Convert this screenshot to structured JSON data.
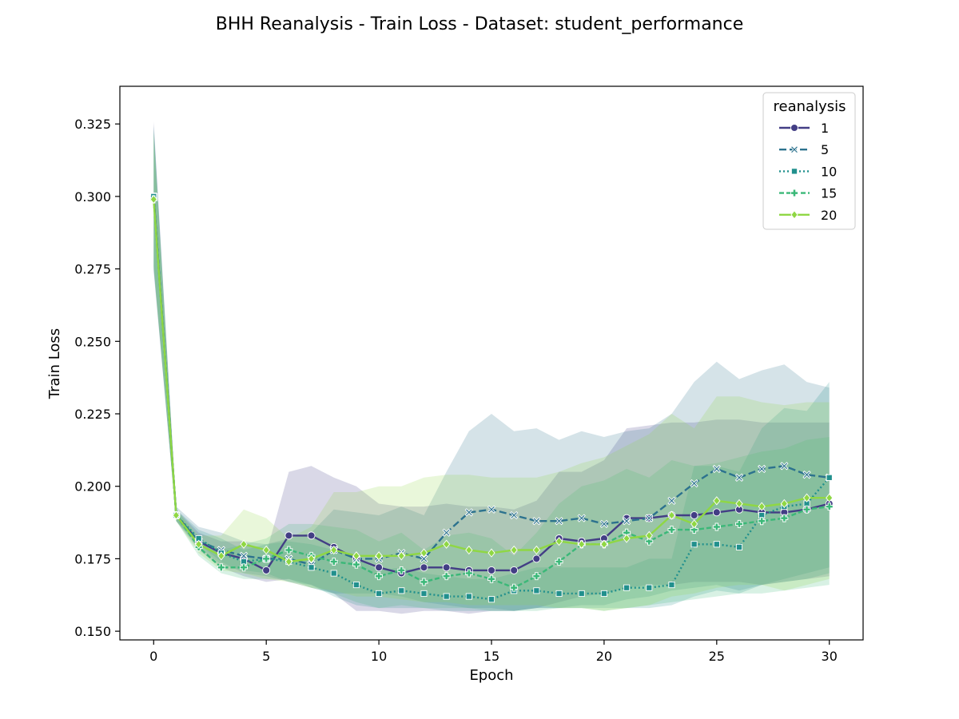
{
  "chart_data": {
    "type": "line",
    "title": "BHH Reanalysis - Train Loss - Dataset: student_performance",
    "xlabel": "Epoch",
    "ylabel": "Train Loss",
    "xlim": [
      -1.5,
      31.5
    ],
    "ylim": [
      0.147,
      0.338
    ],
    "xticks": [
      0,
      5,
      10,
      15,
      20,
      25,
      30
    ],
    "yticks": [
      0.15,
      0.175,
      0.2,
      0.225,
      0.25,
      0.275,
      0.3,
      0.325
    ],
    "grid": false,
    "legend": {
      "title": "reanalysis",
      "placement": "top-right"
    },
    "x": [
      0,
      1,
      2,
      3,
      4,
      5,
      6,
      7,
      8,
      9,
      10,
      11,
      12,
      13,
      14,
      15,
      16,
      17,
      18,
      19,
      20,
      21,
      22,
      23,
      24,
      25,
      26,
      27,
      28,
      29,
      30
    ],
    "series": [
      {
        "name": "1",
        "color": "#433e85",
        "dash": "",
        "marker": "circle",
        "values": [
          0.3,
          0.19,
          0.181,
          0.177,
          0.175,
          0.171,
          0.183,
          0.183,
          0.179,
          0.175,
          0.172,
          0.17,
          0.172,
          0.172,
          0.171,
          0.171,
          0.171,
          0.175,
          0.182,
          0.181,
          0.182,
          0.189,
          0.189,
          0.19,
          0.19,
          0.191,
          0.192,
          0.191,
          0.191,
          0.192,
          0.194
        ],
        "band_lower": [
          0.274,
          0.188,
          0.178,
          0.172,
          0.169,
          0.167,
          0.168,
          0.166,
          0.163,
          0.157,
          0.157,
          0.156,
          0.157,
          0.157,
          0.156,
          0.157,
          0.157,
          0.158,
          0.16,
          0.162,
          0.163,
          0.165,
          0.166,
          0.166,
          0.167,
          0.167,
          0.167,
          0.166,
          0.167,
          0.168,
          0.169
        ],
        "band_upper": [
          0.326,
          0.192,
          0.184,
          0.181,
          0.181,
          0.177,
          0.205,
          0.207,
          0.203,
          0.2,
          0.194,
          0.193,
          0.193,
          0.194,
          0.193,
          0.193,
          0.192,
          0.195,
          0.205,
          0.205,
          0.209,
          0.22,
          0.221,
          0.222,
          0.222,
          0.223,
          0.223,
          0.222,
          0.222,
          0.222,
          0.222
        ]
      },
      {
        "name": "5",
        "color": "#2c728e",
        "dash": "9,4",
        "marker": "x",
        "values": [
          0.3,
          0.19,
          0.181,
          0.178,
          0.176,
          0.175,
          0.175,
          0.173,
          0.178,
          0.175,
          0.175,
          0.177,
          0.175,
          0.184,
          0.191,
          0.192,
          0.19,
          0.188,
          0.188,
          0.189,
          0.187,
          0.188,
          0.189,
          0.195,
          0.201,
          0.206,
          0.203,
          0.206,
          0.207,
          0.204,
          0.203
        ],
        "band_lower": [
          0.275,
          0.188,
          0.18,
          0.174,
          0.17,
          0.169,
          0.167,
          0.165,
          0.163,
          0.163,
          0.163,
          0.162,
          0.16,
          0.159,
          0.158,
          0.158,
          0.157,
          0.158,
          0.158,
          0.159,
          0.159,
          0.161,
          0.162,
          0.164,
          0.165,
          0.166,
          0.164,
          0.166,
          0.168,
          0.17,
          0.172
        ],
        "band_upper": [
          0.325,
          0.193,
          0.186,
          0.184,
          0.181,
          0.18,
          0.182,
          0.184,
          0.192,
          0.191,
          0.19,
          0.193,
          0.19,
          0.205,
          0.219,
          0.225,
          0.219,
          0.22,
          0.216,
          0.219,
          0.217,
          0.219,
          0.22,
          0.225,
          0.236,
          0.243,
          0.237,
          0.24,
          0.242,
          0.236,
          0.234
        ]
      },
      {
        "name": "10",
        "color": "#21908d",
        "dash": "2,3",
        "marker": "square",
        "values": [
          0.3,
          0.19,
          0.182,
          0.177,
          0.174,
          0.175,
          0.174,
          0.172,
          0.17,
          0.166,
          0.163,
          0.164,
          0.163,
          0.162,
          0.162,
          0.161,
          0.164,
          0.164,
          0.163,
          0.163,
          0.163,
          0.165,
          0.165,
          0.166,
          0.18,
          0.18,
          0.179,
          0.19,
          0.193,
          0.194,
          0.203
        ],
        "band_lower": [
          0.276,
          0.188,
          0.179,
          0.173,
          0.171,
          0.17,
          0.167,
          0.166,
          0.162,
          0.159,
          0.158,
          0.158,
          0.158,
          0.157,
          0.157,
          0.157,
          0.157,
          0.158,
          0.158,
          0.158,
          0.158,
          0.158,
          0.158,
          0.159,
          0.162,
          0.164,
          0.163,
          0.166,
          0.167,
          0.168,
          0.17
        ],
        "band_upper": [
          0.324,
          0.192,
          0.185,
          0.182,
          0.178,
          0.18,
          0.181,
          0.18,
          0.178,
          0.175,
          0.171,
          0.172,
          0.17,
          0.169,
          0.168,
          0.168,
          0.17,
          0.172,
          0.172,
          0.172,
          0.172,
          0.172,
          0.175,
          0.175,
          0.207,
          0.207,
          0.205,
          0.22,
          0.227,
          0.226,
          0.236
        ]
      },
      {
        "name": "15",
        "color": "#3bb878",
        "dash": "6,3",
        "marker": "plus",
        "values": [
          0.299,
          0.19,
          0.179,
          0.172,
          0.172,
          0.175,
          0.178,
          0.176,
          0.174,
          0.173,
          0.169,
          0.171,
          0.167,
          0.169,
          0.17,
          0.168,
          0.165,
          0.169,
          0.174,
          0.18,
          0.18,
          0.184,
          0.181,
          0.185,
          0.185,
          0.186,
          0.187,
          0.188,
          0.189,
          0.192,
          0.193
        ],
        "band_lower": [
          0.275,
          0.188,
          0.176,
          0.17,
          0.168,
          0.168,
          0.168,
          0.165,
          0.163,
          0.16,
          0.158,
          0.159,
          0.158,
          0.158,
          0.158,
          0.157,
          0.157,
          0.157,
          0.158,
          0.158,
          0.157,
          0.158,
          0.159,
          0.16,
          0.161,
          0.162,
          0.163,
          0.163,
          0.164,
          0.165,
          0.166
        ],
        "band_upper": [
          0.323,
          0.192,
          0.182,
          0.178,
          0.18,
          0.182,
          0.187,
          0.187,
          0.186,
          0.185,
          0.181,
          0.184,
          0.178,
          0.183,
          0.184,
          0.182,
          0.176,
          0.184,
          0.194,
          0.2,
          0.202,
          0.206,
          0.203,
          0.209,
          0.207,
          0.208,
          0.21,
          0.212,
          0.213,
          0.216,
          0.217
        ]
      },
      {
        "name": "20",
        "color": "#8fd744",
        "dash": "",
        "marker": "diamond",
        "values": [
          0.299,
          0.19,
          0.18,
          0.176,
          0.18,
          0.178,
          0.174,
          0.175,
          0.178,
          0.176,
          0.176,
          0.176,
          0.177,
          0.18,
          0.178,
          0.177,
          0.178,
          0.178,
          0.181,
          0.18,
          0.18,
          0.182,
          0.183,
          0.19,
          0.187,
          0.195,
          0.194,
          0.193,
          0.194,
          0.196,
          0.196
        ],
        "band_lower": [
          0.276,
          0.188,
          0.177,
          0.171,
          0.17,
          0.168,
          0.167,
          0.165,
          0.164,
          0.162,
          0.162,
          0.161,
          0.16,
          0.16,
          0.159,
          0.159,
          0.159,
          0.159,
          0.158,
          0.158,
          0.157,
          0.158,
          0.159,
          0.162,
          0.163,
          0.165,
          0.166,
          0.166,
          0.164,
          0.166,
          0.168
        ],
        "band_upper": [
          0.322,
          0.192,
          0.183,
          0.183,
          0.192,
          0.189,
          0.182,
          0.186,
          0.198,
          0.198,
          0.2,
          0.2,
          0.203,
          0.204,
          0.204,
          0.203,
          0.203,
          0.203,
          0.205,
          0.208,
          0.21,
          0.214,
          0.218,
          0.225,
          0.22,
          0.231,
          0.231,
          0.229,
          0.228,
          0.229,
          0.229
        ]
      }
    ]
  }
}
